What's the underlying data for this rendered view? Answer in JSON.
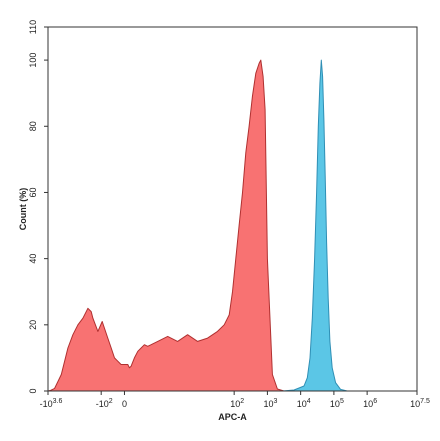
{
  "chart_data": {
    "type": "area",
    "title": "",
    "xlabel": "APC-A",
    "ylabel": "Count (%)",
    "ylim": [
      0,
      110
    ],
    "y_ticks": [
      0,
      20,
      40,
      60,
      80,
      100,
      110
    ],
    "x_ticks": [
      {
        "base": "-10",
        "exp": "3.6"
      },
      {
        "base": "-10",
        "exp": "2"
      },
      {
        "base": "0",
        "exp": ""
      },
      {
        "base": "10",
        "exp": "2"
      },
      {
        "base": "10",
        "exp": "3"
      },
      {
        "base": "10",
        "exp": "4"
      },
      {
        "base": "10",
        "exp": "5"
      },
      {
        "base": "10",
        "exp": "6"
      },
      {
        "base": "10",
        "exp": "7.5"
      }
    ],
    "x_tick_positions": [
      -3.6,
      -2,
      -1.3,
      2,
      3,
      4,
      5,
      6,
      7.5
    ],
    "x_scale": "biexponential (log10 display)",
    "grid": false,
    "legend": "none",
    "colors": {
      "red_fill": "#F87272",
      "red_line": "#B03030",
      "blue_fill": "#5BC6E6",
      "blue_line": "#2F8FB5"
    },
    "series": [
      {
        "color": "red",
        "x": [
          -3.6,
          -3.52,
          -3.4,
          -3.2,
          -3.0,
          -2.85,
          -2.7,
          -2.55,
          -2.4,
          -2.3,
          -2.25,
          -2.1,
          -1.97,
          -1.8,
          -1.7,
          -1.6,
          -1.5,
          -1.4,
          -1.3,
          -1.2,
          -1.15,
          -1.1,
          -1.0,
          -0.9,
          -0.8,
          -0.7,
          -0.6,
          -0.5,
          -0.3,
          0.0,
          0.3,
          0.6,
          0.9,
          1.2,
          1.5,
          1.7,
          1.85,
          1.95,
          2.05,
          2.15,
          2.25,
          2.35,
          2.45,
          2.55,
          2.65,
          2.75,
          2.8,
          2.87,
          2.93,
          3.0,
          3.15,
          3.3,
          3.5
        ],
        "y": [
          0,
          0.2,
          0.8,
          5,
          13,
          17,
          20,
          22,
          25,
          24,
          22,
          18,
          21,
          16,
          13,
          10,
          9,
          8,
          8,
          8,
          7,
          7.5,
          10,
          12,
          13,
          14,
          13.5,
          14,
          15,
          16.5,
          15,
          17,
          15,
          16,
          18,
          20,
          23,
          30,
          40,
          50,
          60,
          72,
          80,
          89,
          96,
          99,
          100,
          95,
          85,
          40,
          5,
          0.6,
          0
        ]
      },
      {
        "color": "blue",
        "x": [
          3.45,
          3.8,
          4.1,
          4.2,
          4.28,
          4.35,
          4.42,
          4.48,
          4.53,
          4.58,
          4.62,
          4.66,
          4.7,
          4.74,
          4.78,
          4.83,
          4.88,
          4.95,
          5.05,
          5.2,
          5.4
        ],
        "y": [
          0,
          0.3,
          1.5,
          4,
          10,
          22,
          40,
          60,
          80,
          93,
          100,
          95,
          82,
          65,
          45,
          28,
          15,
          7,
          2.5,
          0.5,
          0
        ]
      }
    ]
  }
}
